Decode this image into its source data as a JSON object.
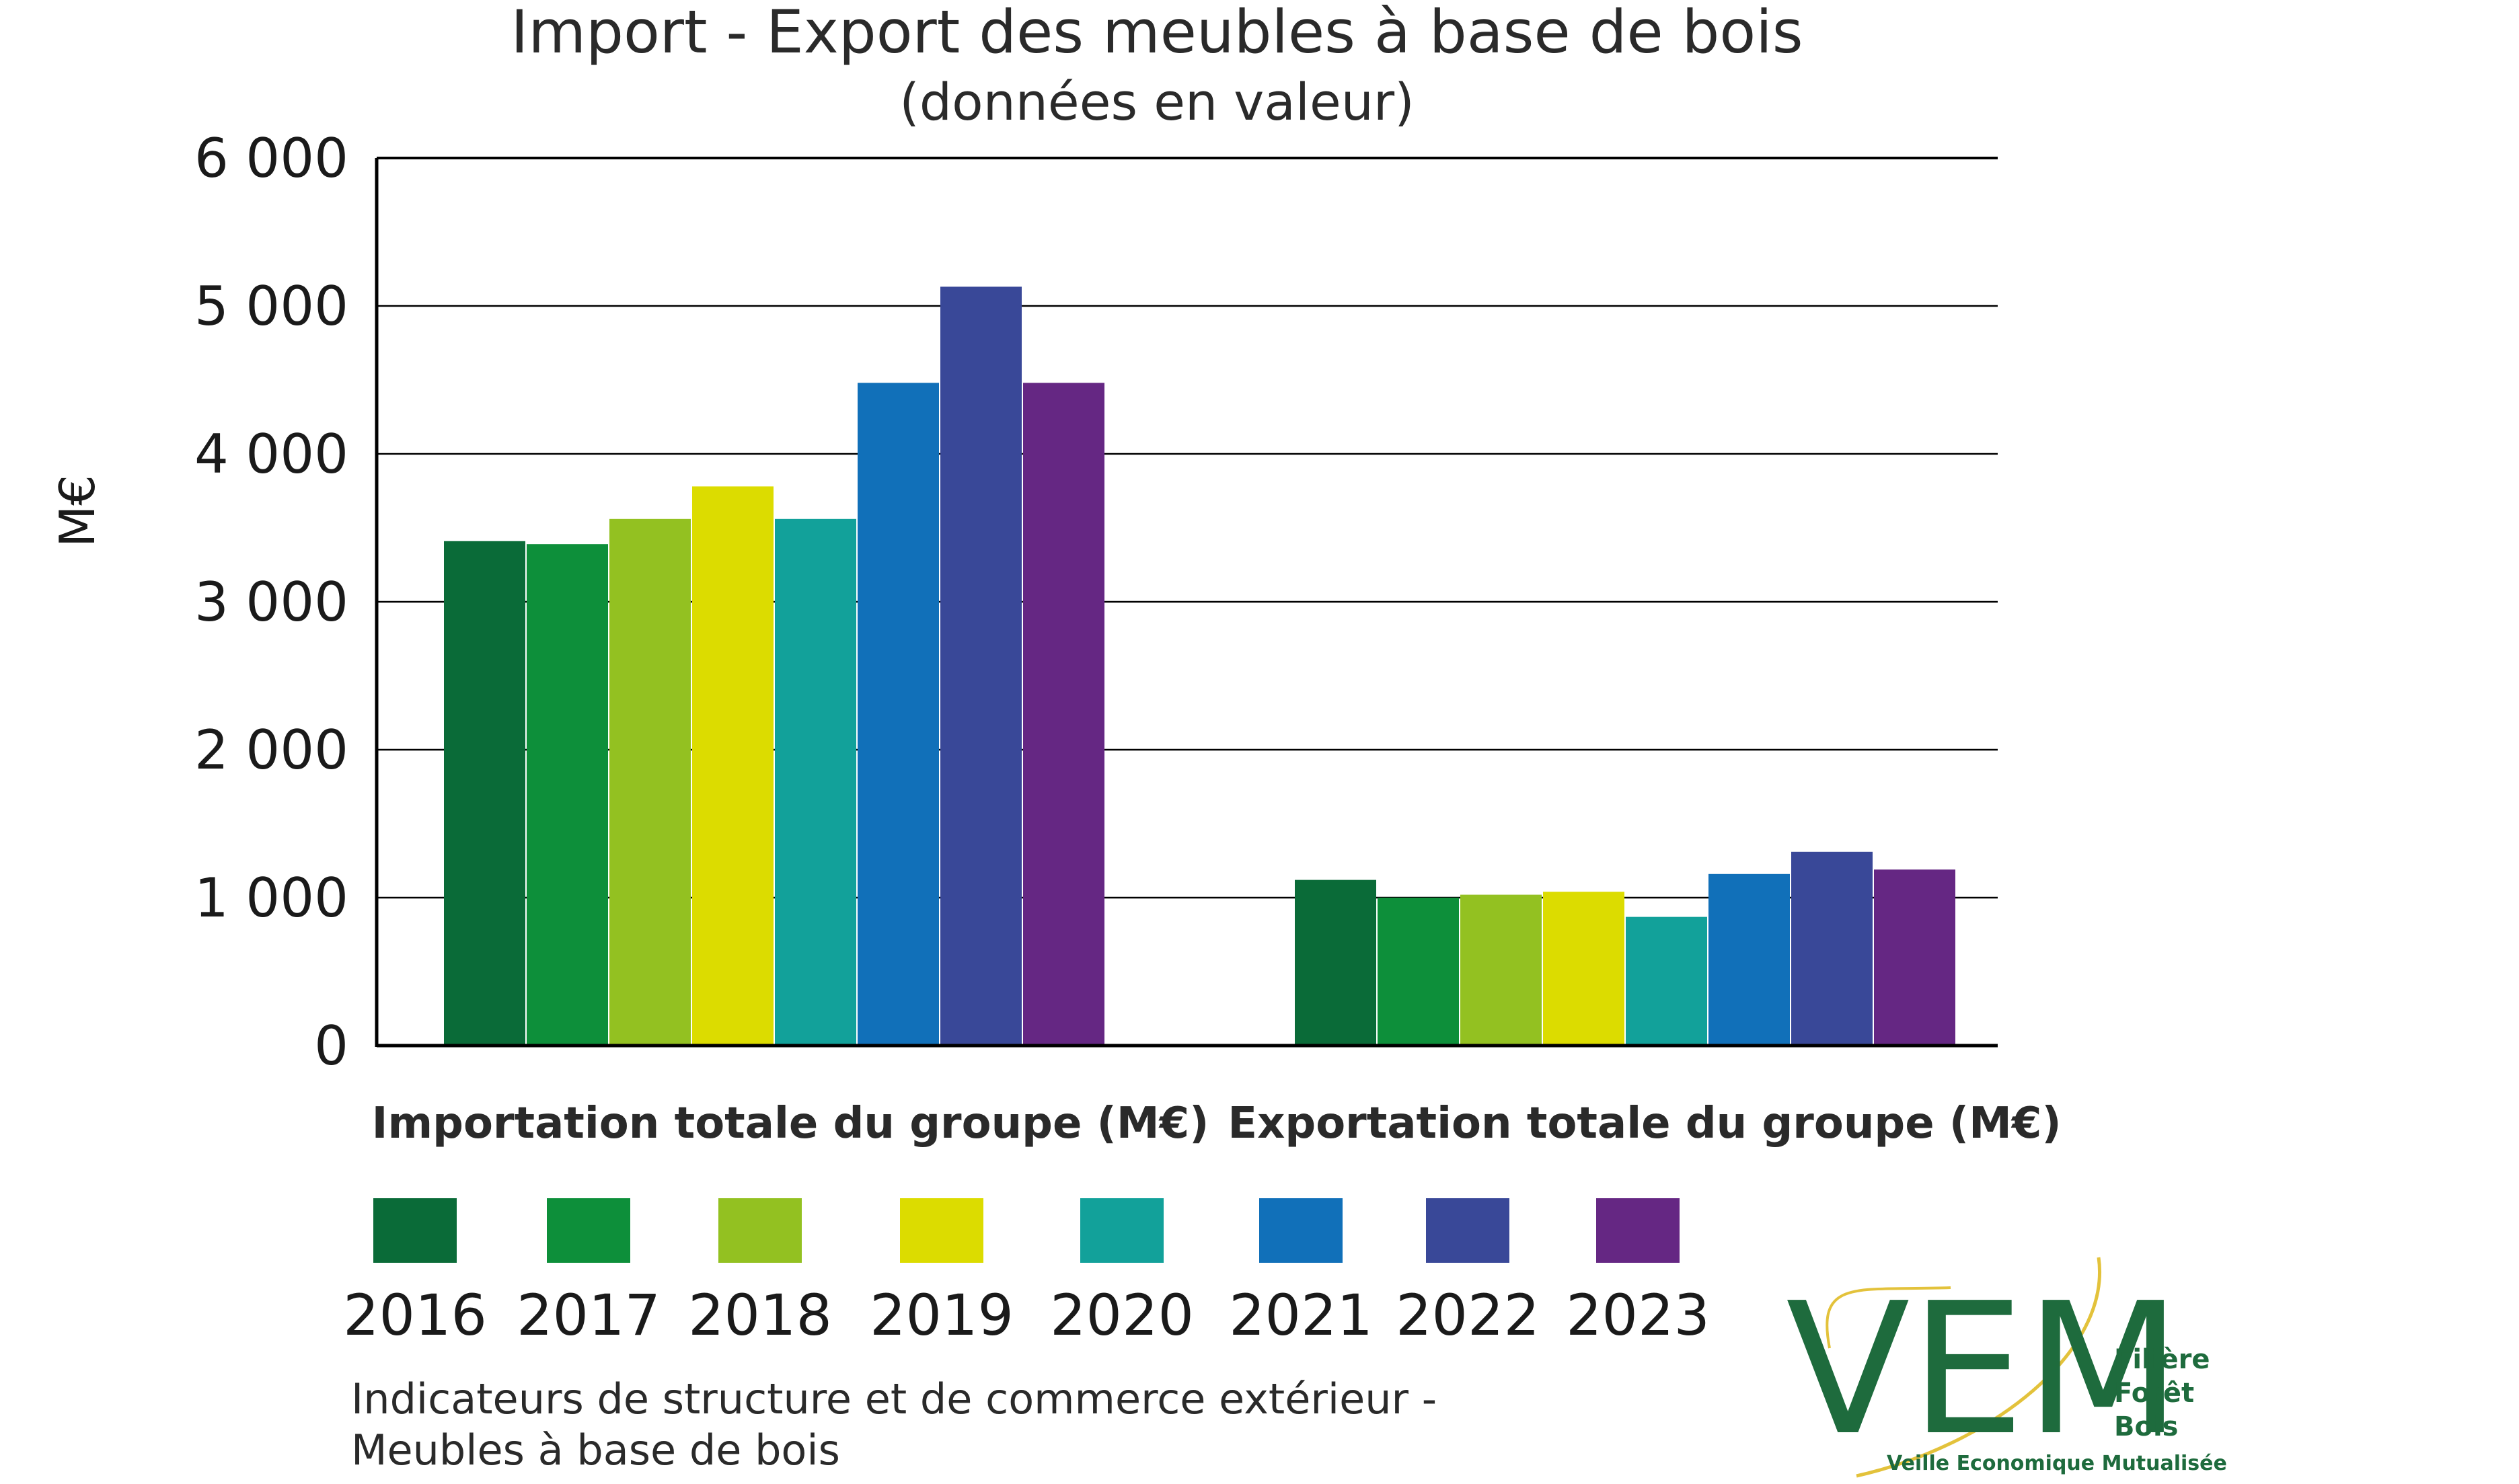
{
  "chart_data": {
    "type": "bar",
    "title": "Import - Export des meubles à base de bois",
    "subtitle": "(données en valeur)",
    "ylabel": "M€",
    "xlabel": "",
    "ylim": [
      0,
      6000
    ],
    "yticks": [
      {
        "value": 0,
        "label": "0"
      },
      {
        "value": 1000,
        "label": "1 000"
      },
      {
        "value": 2000,
        "label": "2 000"
      },
      {
        "value": 3000,
        "label": "3 000"
      },
      {
        "value": 4000,
        "label": "4 000"
      },
      {
        "value": 5000,
        "label": "5 000"
      },
      {
        "value": 6000,
        "label": "6 000"
      }
    ],
    "grid": true,
    "legend_position": "bottom",
    "categories": [
      "Importation totale du groupe (M€)",
      "Exportation totale du groupe (M€)"
    ],
    "series": [
      {
        "name": "2016",
        "color": "#0a6b38",
        "values": [
          3410,
          1120
        ]
      },
      {
        "name": "2017",
        "color": "#0d8f3a",
        "values": [
          3390,
          1000
        ]
      },
      {
        "name": "2018",
        "color": "#93c121",
        "values": [
          3560,
          1020
        ]
      },
      {
        "name": "2019",
        "color": "#dcdc00",
        "values": [
          3780,
          1040
        ]
      },
      {
        "name": "2020",
        "color": "#12a19a",
        "values": [
          3560,
          870
        ]
      },
      {
        "name": "2021",
        "color": "#1170b9",
        "values": [
          4480,
          1160
        ]
      },
      {
        "name": "2022",
        "color": "#394898",
        "values": [
          5130,
          1310
        ]
      },
      {
        "name": "2023",
        "color": "#652783",
        "values": [
          4480,
          1190
        ]
      }
    ]
  },
  "footer": {
    "line1": "Indicateurs de structure et de commerce extérieur -",
    "line2": "Meubles à base de bois"
  },
  "logo": {
    "letters": "VEM",
    "word1": "Filière",
    "word2": "Forêt",
    "word3": "Bois",
    "tagline": "Veille Economique Mutualisée",
    "color": "#1e6b3d",
    "accent": "#e3c23b"
  }
}
